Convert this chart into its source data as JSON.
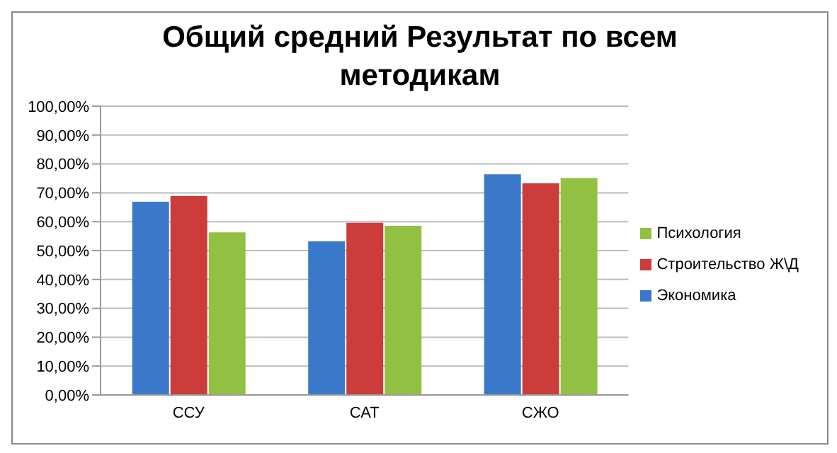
{
  "chart_data": {
    "type": "bar",
    "title": "Общий средний Результат по всем методикам",
    "categories": [
      "ССУ",
      "САТ",
      "СЖО"
    ],
    "series": [
      {
        "name": "Экономика",
        "color": "#3a78c9",
        "values": [
          66.9,
          53.2,
          76.4
        ]
      },
      {
        "name": "Строительство Ж\\Д",
        "color": "#cc3c3a",
        "values": [
          68.9,
          59.6,
          73.3
        ]
      },
      {
        "name": "Психология",
        "color": "#92c043",
        "values": [
          56.3,
          58.6,
          75.1
        ]
      }
    ],
    "ylim": [
      0,
      100
    ],
    "yticks": [
      {
        "value": 0,
        "label": "0,00%"
      },
      {
        "value": 10,
        "label": "10,00%"
      },
      {
        "value": 20,
        "label": "20,00%"
      },
      {
        "value": 30,
        "label": "30,00%"
      },
      {
        "value": 40,
        "label": "40,00%"
      },
      {
        "value": 50,
        "label": "50,00%"
      },
      {
        "value": 60,
        "label": "60,00%"
      },
      {
        "value": 70,
        "label": "70,00%"
      },
      {
        "value": 80,
        "label": "80,00%"
      },
      {
        "value": 90,
        "label": "90,00%"
      },
      {
        "value": 100,
        "label": "100,00%"
      }
    ],
    "grid": "y",
    "legend": "right"
  }
}
